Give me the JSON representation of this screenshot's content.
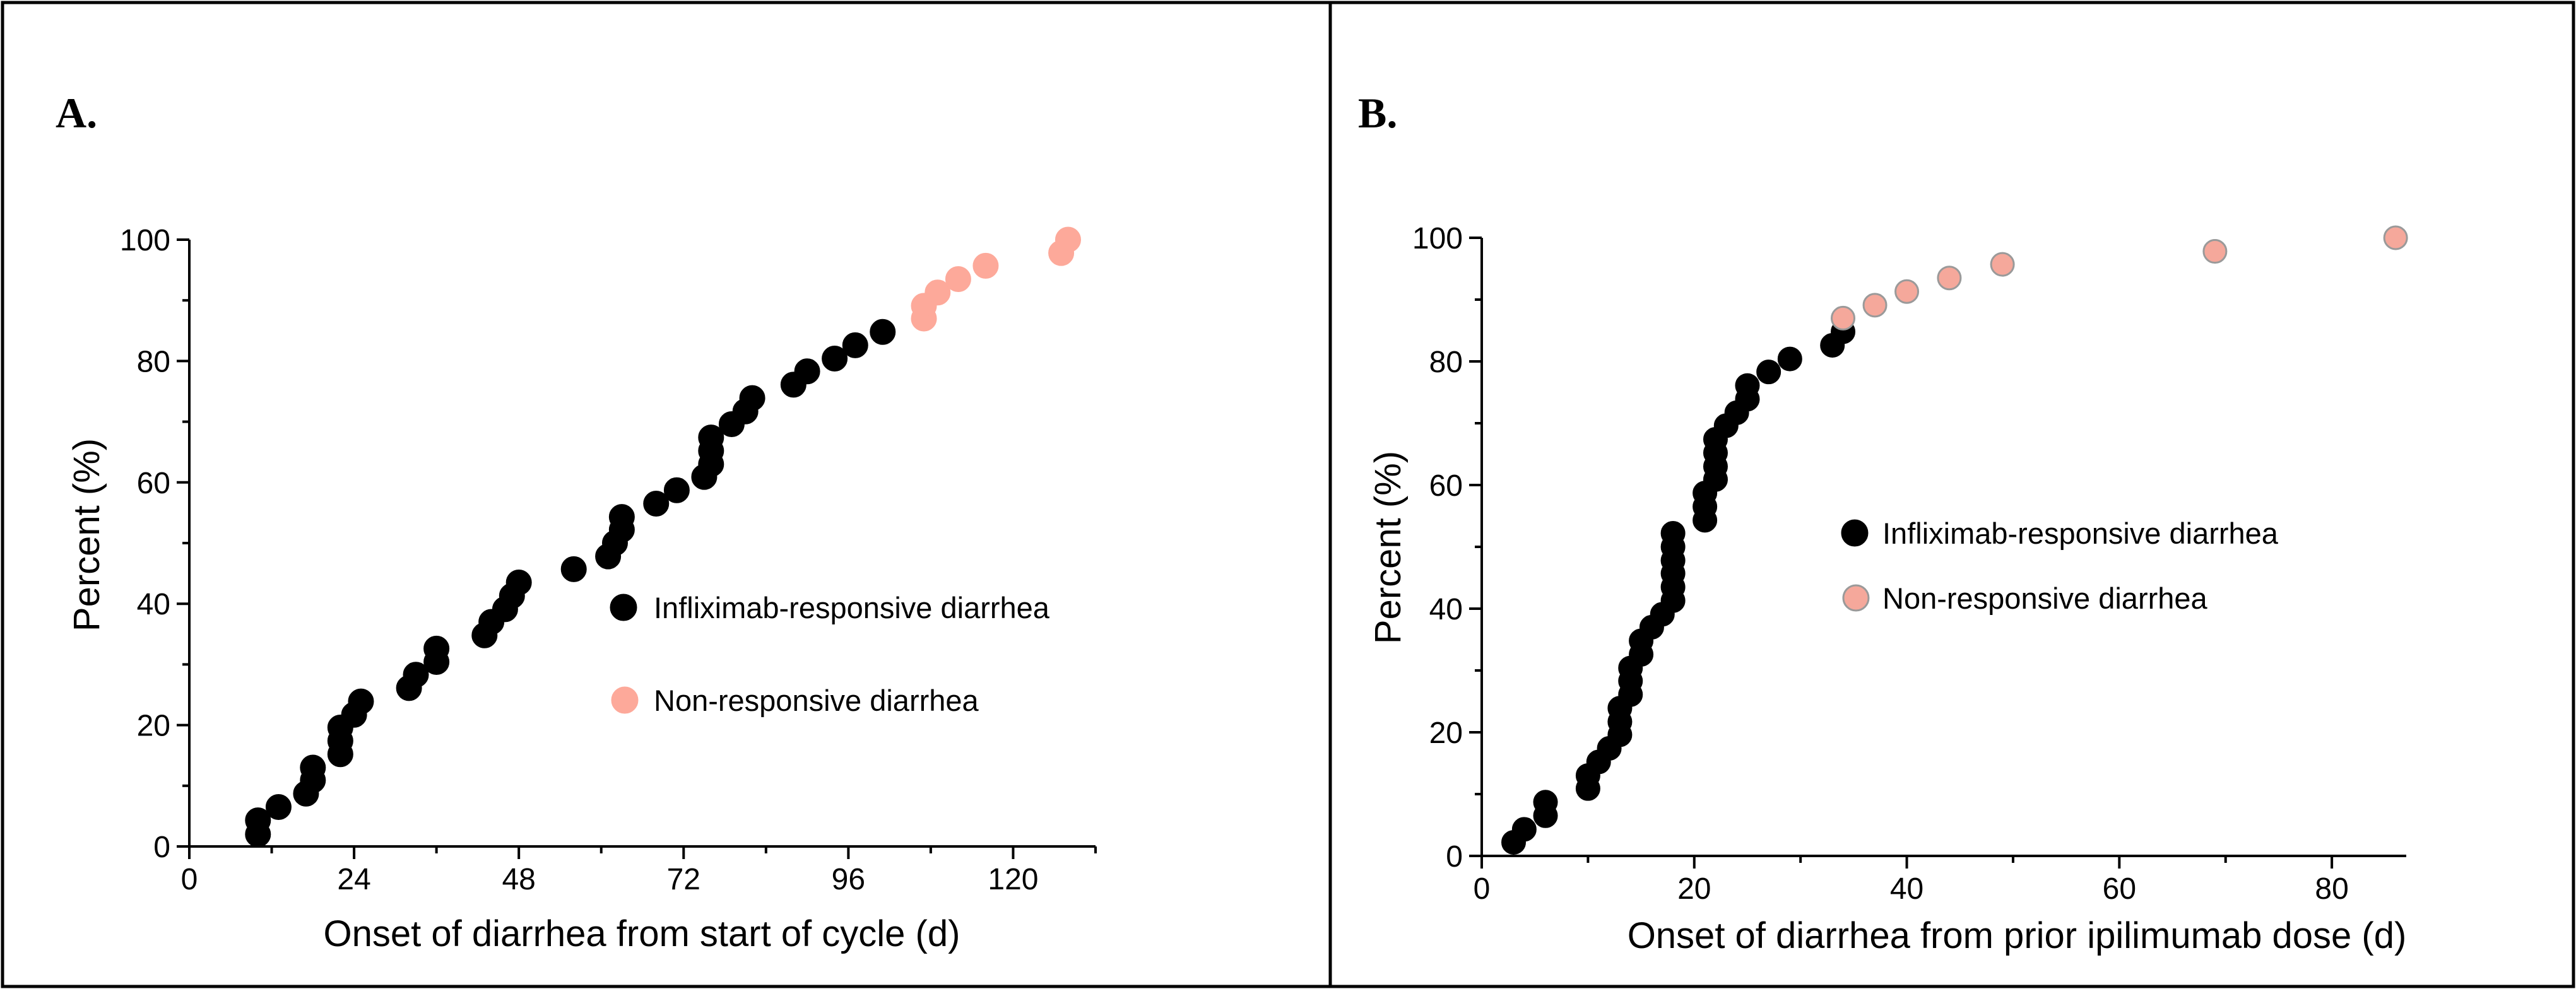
{
  "figure": {
    "background": "#ffffff",
    "border_color": "#000000"
  },
  "chart_data": [
    {
      "panel_label": "A.",
      "type": "scatter",
      "xlabel": "Onset of diarrhea from start of cycle (d)",
      "ylabel": "Percent (%)",
      "xlim": [
        0,
        132
      ],
      "ylim": [
        0,
        100
      ],
      "xticks": [
        0,
        24,
        48,
        72,
        96,
        120
      ],
      "yticks": [
        0,
        20,
        40,
        60,
        80,
        100
      ],
      "legend_position": "center-right",
      "series": [
        {
          "name": "Infliximab-responsive diarrhea",
          "color": "#000000",
          "stroke": "#000000",
          "points": [
            [
              10,
              2
            ],
            [
              10,
              4.3
            ],
            [
              13,
              6.5
            ],
            [
              17,
              8.7
            ],
            [
              18,
              10.9
            ],
            [
              18,
              13
            ],
            [
              22,
              15.2
            ],
            [
              22,
              17.4
            ],
            [
              22,
              19.6
            ],
            [
              24,
              21.7
            ],
            [
              25,
              23.9
            ],
            [
              32,
              26.1
            ],
            [
              33,
              28.3
            ],
            [
              36,
              30.4
            ],
            [
              36,
              32.6
            ],
            [
              43,
              34.8
            ],
            [
              44,
              37
            ],
            [
              46,
              39.1
            ],
            [
              47,
              41.3
            ],
            [
              48,
              43.5
            ],
            [
              56,
              45.7
            ],
            [
              61,
              47.8
            ],
            [
              62,
              50
            ],
            [
              63,
              52.2
            ],
            [
              63,
              54.3
            ],
            [
              68,
              56.5
            ],
            [
              71,
              58.7
            ],
            [
              75,
              60.9
            ],
            [
              76,
              63
            ],
            [
              76,
              65.2
            ],
            [
              76,
              67.4
            ],
            [
              79,
              69.6
            ],
            [
              81,
              71.7
            ],
            [
              82,
              73.9
            ],
            [
              88,
              76.1
            ],
            [
              90,
              78.3
            ],
            [
              94,
              80.4
            ],
            [
              97,
              82.6
            ],
            [
              101,
              84.8
            ]
          ]
        },
        {
          "name": "Non-responsive diarrhea",
          "color": "#fda99a",
          "stroke": "#fda99a",
          "points": [
            [
              107,
              87
            ],
            [
              107,
              89.1
            ],
            [
              109,
              91.3
            ],
            [
              112,
              93.5
            ],
            [
              116,
              95.7
            ],
            [
              127,
              97.8
            ],
            [
              128,
              100
            ]
          ]
        }
      ]
    },
    {
      "panel_label": "B.",
      "type": "scatter",
      "xlabel": "Onset of diarrhea from prior ipilimumab dose (d)",
      "ylabel": "Percent (%)",
      "xlim": [
        0,
        87
      ],
      "ylim": [
        0,
        100
      ],
      "xticks": [
        0,
        20,
        40,
        60,
        80
      ],
      "yticks": [
        0,
        20,
        40,
        60,
        80,
        100
      ],
      "legend_position": "center",
      "series": [
        {
          "name": "Infliximab-responsive diarrhea",
          "color": "#000000",
          "stroke": "#000000",
          "points": [
            [
              3,
              2.2
            ],
            [
              4,
              4.3
            ],
            [
              6,
              6.5
            ],
            [
              6,
              8.7
            ],
            [
              10,
              10.9
            ],
            [
              10,
              13
            ],
            [
              11,
              15.2
            ],
            [
              12,
              17.4
            ],
            [
              13,
              19.6
            ],
            [
              13,
              21.7
            ],
            [
              13,
              23.9
            ],
            [
              14,
              26.1
            ],
            [
              14,
              28.3
            ],
            [
              14,
              30.4
            ],
            [
              15,
              32.6
            ],
            [
              15,
              34.8
            ],
            [
              16,
              37
            ],
            [
              17,
              39.1
            ],
            [
              18,
              41.3
            ],
            [
              18,
              43.5
            ],
            [
              18,
              45.7
            ],
            [
              18,
              47.8
            ],
            [
              18,
              50
            ],
            [
              18,
              52.2
            ],
            [
              21,
              54.3
            ],
            [
              21,
              56.5
            ],
            [
              21,
              58.7
            ],
            [
              22,
              60.9
            ],
            [
              22,
              63
            ],
            [
              22,
              65.2
            ],
            [
              22,
              67.4
            ],
            [
              23,
              69.6
            ],
            [
              24,
              71.7
            ],
            [
              25,
              73.9
            ],
            [
              25,
              76.1
            ],
            [
              27,
              78.3
            ],
            [
              29,
              80.4
            ],
            [
              33,
              82.6
            ],
            [
              34,
              84.8
            ]
          ]
        },
        {
          "name": "Non-responsive diarrhea",
          "color": "#f5a89b",
          "stroke": "#9a9a9a",
          "points": [
            [
              34,
              87
            ],
            [
              37,
              89.1
            ],
            [
              40,
              91.3
            ],
            [
              44,
              93.5
            ],
            [
              49,
              95.7
            ],
            [
              69,
              97.8
            ],
            [
              86,
              100
            ]
          ]
        }
      ]
    }
  ]
}
